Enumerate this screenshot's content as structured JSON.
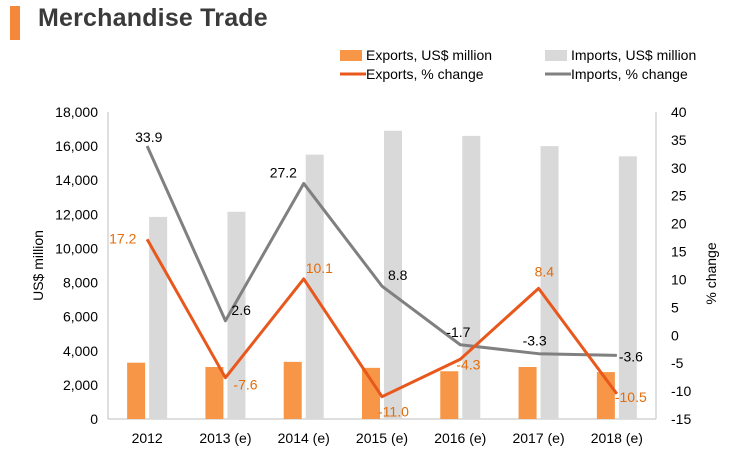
{
  "title": "Merchandise Trade",
  "colors": {
    "accent": "#F5893A",
    "exports_bar": "#F79646",
    "imports_bar": "#D9D9D9",
    "exports_line": "#E8581C",
    "imports_line": "#808080",
    "exports_label": "#E46C0A",
    "text": "#000000"
  },
  "chart_data": {
    "type": "bar",
    "categories": [
      "2012",
      "2013 (e)",
      "2014 (e)",
      "2015 (e)",
      "2016 (e)",
      "2017 (e)",
      "2018 (e)"
    ],
    "ylabel": "US$ million",
    "y2label": "% change",
    "ylim": [
      0,
      18000
    ],
    "y2lim": [
      -15,
      40
    ],
    "yticks": [
      "0",
      "2,000",
      "4,000",
      "6,000",
      "8,000",
      "10,000",
      "12,000",
      "14,000",
      "16,000",
      "18,000"
    ],
    "y2ticks": [
      "-15",
      "-10",
      "-5",
      "0",
      "5",
      "10",
      "15",
      "20",
      "25",
      "30",
      "35",
      "40"
    ],
    "legend_position": "top-right",
    "series": [
      {
        "name": "Exports, US$ million",
        "kind": "bar",
        "axis": "left",
        "values": [
          3300,
          3050,
          3350,
          3000,
          2800,
          3050,
          2750
        ]
      },
      {
        "name": "Imports, US$ million",
        "kind": "bar",
        "axis": "left",
        "values": [
          11850,
          12150,
          15500,
          16900,
          16600,
          16000,
          15400
        ]
      },
      {
        "name": "Exports, % change",
        "kind": "line",
        "axis": "right",
        "values": [
          17.2,
          -7.6,
          10.1,
          -11.0,
          -4.3,
          8.4,
          -10.5
        ],
        "labels": [
          "17.2",
          "-7.6",
          "10.1",
          "-11.0",
          "-4.3",
          "8.4",
          "-10.5"
        ]
      },
      {
        "name": "Imports, % change",
        "kind": "line",
        "axis": "right",
        "values": [
          33.9,
          2.6,
          27.2,
          8.8,
          -1.7,
          -3.3,
          -3.6
        ],
        "labels": [
          "33.9",
          "2.6",
          "27.2",
          "8.8",
          "-1.7",
          "-3.3",
          "-3.6"
        ]
      }
    ]
  }
}
